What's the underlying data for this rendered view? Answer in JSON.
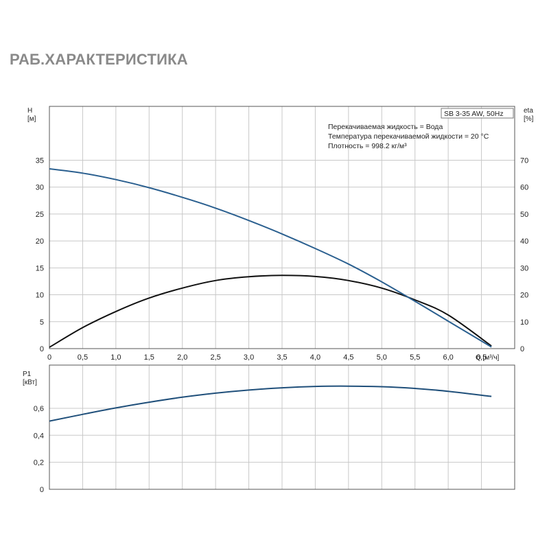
{
  "page_title": "РАБ.ХАРАКТЕРИСТИКА",
  "colors": {
    "head_curve": "#2a5f8f",
    "eta_curve": "#111111",
    "power_curve": "#1f4f7a",
    "grid": "#c8c8c8",
    "frame": "#555555"
  },
  "chart_data": [
    {
      "type": "line",
      "info_box": {
        "model": "SB 3-35 AW, 50Hz",
        "lines": [
          "Перекачиваемая жидкость = Вода",
          "Температура перекачиваемой жидкости = 20 °C",
          "Плотность = 998.2 кг/м³"
        ]
      },
      "y_left": {
        "label_line1": "H",
        "label_line2": "[м]",
        "range": [
          0,
          45
        ],
        "ticks": [
          "0",
          "5",
          "10",
          "15",
          "20",
          "25",
          "30",
          "35"
        ]
      },
      "y_right": {
        "label_line1": "eta",
        "label_line2": "[%]",
        "range": [
          0,
          90
        ],
        "ticks": [
          "0",
          "10",
          "20",
          "30",
          "40",
          "50",
          "60",
          "70"
        ]
      },
      "x": {
        "label": "Q [м³/ч]",
        "range": [
          0,
          7.0
        ],
        "ticks": [
          "0",
          "0,5",
          "1,0",
          "1,5",
          "2,0",
          "2,5",
          "3,0",
          "3,5",
          "4,0",
          "4,5",
          "5,0",
          "5,5",
          "6,0",
          "6,5"
        ]
      },
      "grid": true,
      "series": [
        {
          "axis": "left",
          "x": [
            0,
            0.5,
            1.0,
            1.5,
            2.0,
            2.5,
            3.0,
            3.5,
            4.0,
            4.5,
            5.0,
            5.5,
            6.0,
            6.65
          ],
          "y": [
            33.4,
            32.6,
            31.4,
            29.9,
            28.1,
            26.1,
            23.8,
            21.3,
            18.6,
            15.7,
            12.4,
            8.8,
            5.1,
            0.3
          ]
        },
        {
          "axis": "right",
          "x": [
            0,
            0.5,
            1.0,
            1.5,
            2.0,
            2.5,
            3.0,
            3.5,
            4.0,
            4.5,
            5.0,
            5.5,
            6.0,
            6.65
          ],
          "y": [
            0.5,
            7.8,
            13.8,
            18.8,
            22.5,
            25.3,
            26.7,
            27.2,
            26.8,
            25.3,
            22.5,
            18.1,
            12.5,
            1.0
          ]
        }
      ]
    },
    {
      "type": "line",
      "y_left": {
        "label_line1": "P1",
        "label_line2": "[кВт]",
        "range": [
          0,
          0.92
        ],
        "ticks": [
          "0",
          "0,2",
          "0,4",
          "0,6"
        ]
      },
      "x": {
        "range": [
          0,
          7.0
        ]
      },
      "grid": true,
      "series": [
        {
          "axis": "left",
          "x": [
            0,
            0.5,
            1.0,
            1.5,
            2.0,
            2.5,
            3.0,
            3.5,
            4.0,
            4.5,
            5.0,
            5.5,
            6.0,
            6.65
          ],
          "y": [
            0.505,
            0.555,
            0.603,
            0.645,
            0.682,
            0.712,
            0.735,
            0.752,
            0.762,
            0.764,
            0.76,
            0.747,
            0.726,
            0.688
          ]
        }
      ]
    }
  ]
}
